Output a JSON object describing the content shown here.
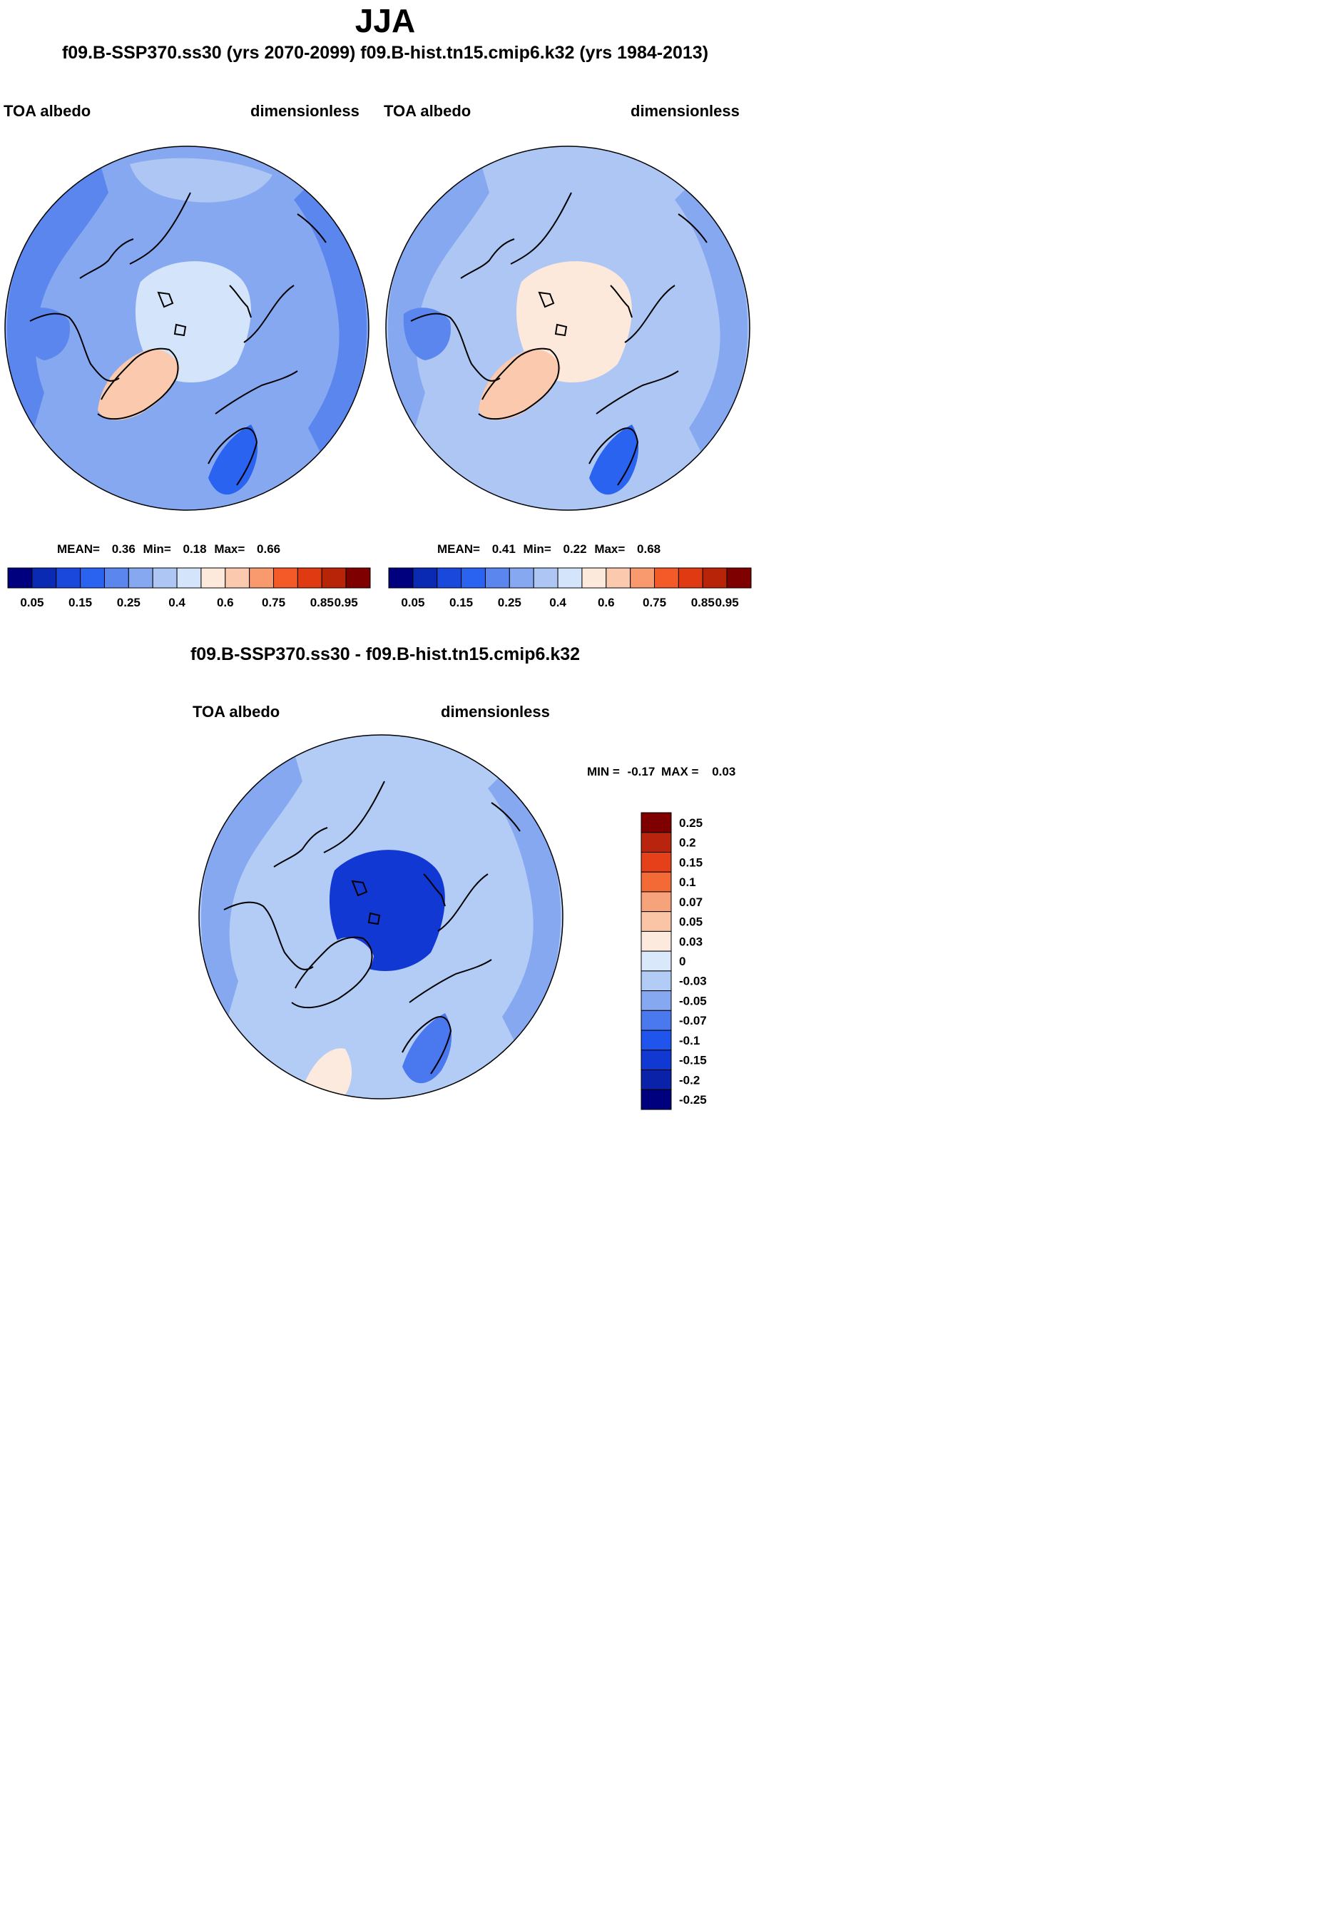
{
  "header": {
    "title": "JJA",
    "subtitle": "f09.B-SSP370.ss30 (yrs 2070-2099)  f09.B-hist.tn15.cmip6.k32 (yrs 1984-2013)"
  },
  "palette": {
    "abs_colors": [
      "#00007f",
      "#0a2ab4",
      "#1a48dc",
      "#2a63f0",
      "#5a86ee",
      "#86a8f0",
      "#aec6f4",
      "#d4e4fa",
      "#fde9dc",
      "#fbc9ad",
      "#f89a6e",
      "#f45a28",
      "#e03a12",
      "#b82408",
      "#7f0000"
    ],
    "diff_colors": [
      "#00007f",
      "#0a22a8",
      "#1238d4",
      "#1f55ec",
      "#4a78ee",
      "#86a8f0",
      "#b3ccf6",
      "#dae8fb",
      "#fdeadf",
      "#f9c5a6",
      "#f6a27a",
      "#f46a36",
      "#e6401a",
      "#b8240e",
      "#7f0000"
    ],
    "outline": "#000000"
  },
  "chart_data": [
    {
      "type": "heatmap",
      "projection": "north-polar-stereographic",
      "case": "f09.B-SSP370.ss30 (yrs 2070-2099)",
      "left_label": "TOA albedo",
      "right_label": "dimensionless",
      "stats": {
        "mean_label": "MEAN=",
        "mean": "0.36",
        "min_label": "Min=",
        "min": "0.18",
        "max_label": "Max=",
        "max": "0.66"
      },
      "colorbar": {
        "orientation": "horizontal",
        "tick_labels": [
          "0.05",
          "0.15",
          "0.25",
          "0.4",
          "0.6",
          "0.75",
          "0.85",
          "0.95"
        ]
      },
      "field_ratings": {
        "background": 5,
        "ocean_outer": 4,
        "arctic_ocean": 7,
        "greenland": 9,
        "pacific_cloud": 6,
        "europe_dark": 3,
        "canada_inland": 4
      }
    },
    {
      "type": "heatmap",
      "projection": "north-polar-stereographic",
      "case": "f09.B-hist.tn15.cmip6.k32 (yrs 1984-2013)",
      "left_label": "TOA albedo",
      "right_label": "dimensionless",
      "stats": {
        "mean_label": "MEAN=",
        "mean": "0.41",
        "min_label": "Min=",
        "min": "0.22",
        "max_label": "Max=",
        "max": "0.68"
      },
      "colorbar": {
        "orientation": "horizontal",
        "tick_labels": [
          "0.05",
          "0.15",
          "0.25",
          "0.4",
          "0.6",
          "0.75",
          "0.85",
          "0.95"
        ]
      },
      "field_ratings": {
        "background": 6,
        "ocean_outer": 5,
        "arctic_ocean": 8,
        "greenland": 9,
        "pacific_cloud": 6,
        "europe_dark": 3,
        "canada_inland": 4
      }
    },
    {
      "type": "heatmap",
      "projection": "north-polar-stereographic",
      "title": "f09.B-SSP370.ss30 - f09.B-hist.tn15.cmip6.k32",
      "left_label": "TOA albedo",
      "right_label": "dimensionless",
      "stats": {
        "min_label": "MIN =",
        "min": "-0.17",
        "max_label": "MAX =",
        "max": "0.03"
      },
      "colorbar": {
        "orientation": "vertical",
        "tick_labels": [
          "-0.25",
          "-0.2",
          "-0.15",
          "-0.1",
          "-0.07",
          "-0.05",
          "-0.03",
          "0",
          "0.03",
          "0.05",
          "0.07",
          "0.1",
          "0.15",
          "0.2",
          "0.25"
        ]
      },
      "field_ratings": {
        "background": 6,
        "ocean_outer": 5,
        "arctic_ocean": 2,
        "greenland": 6,
        "atlantic_patch": 8,
        "europe_dark": 4
      }
    }
  ]
}
